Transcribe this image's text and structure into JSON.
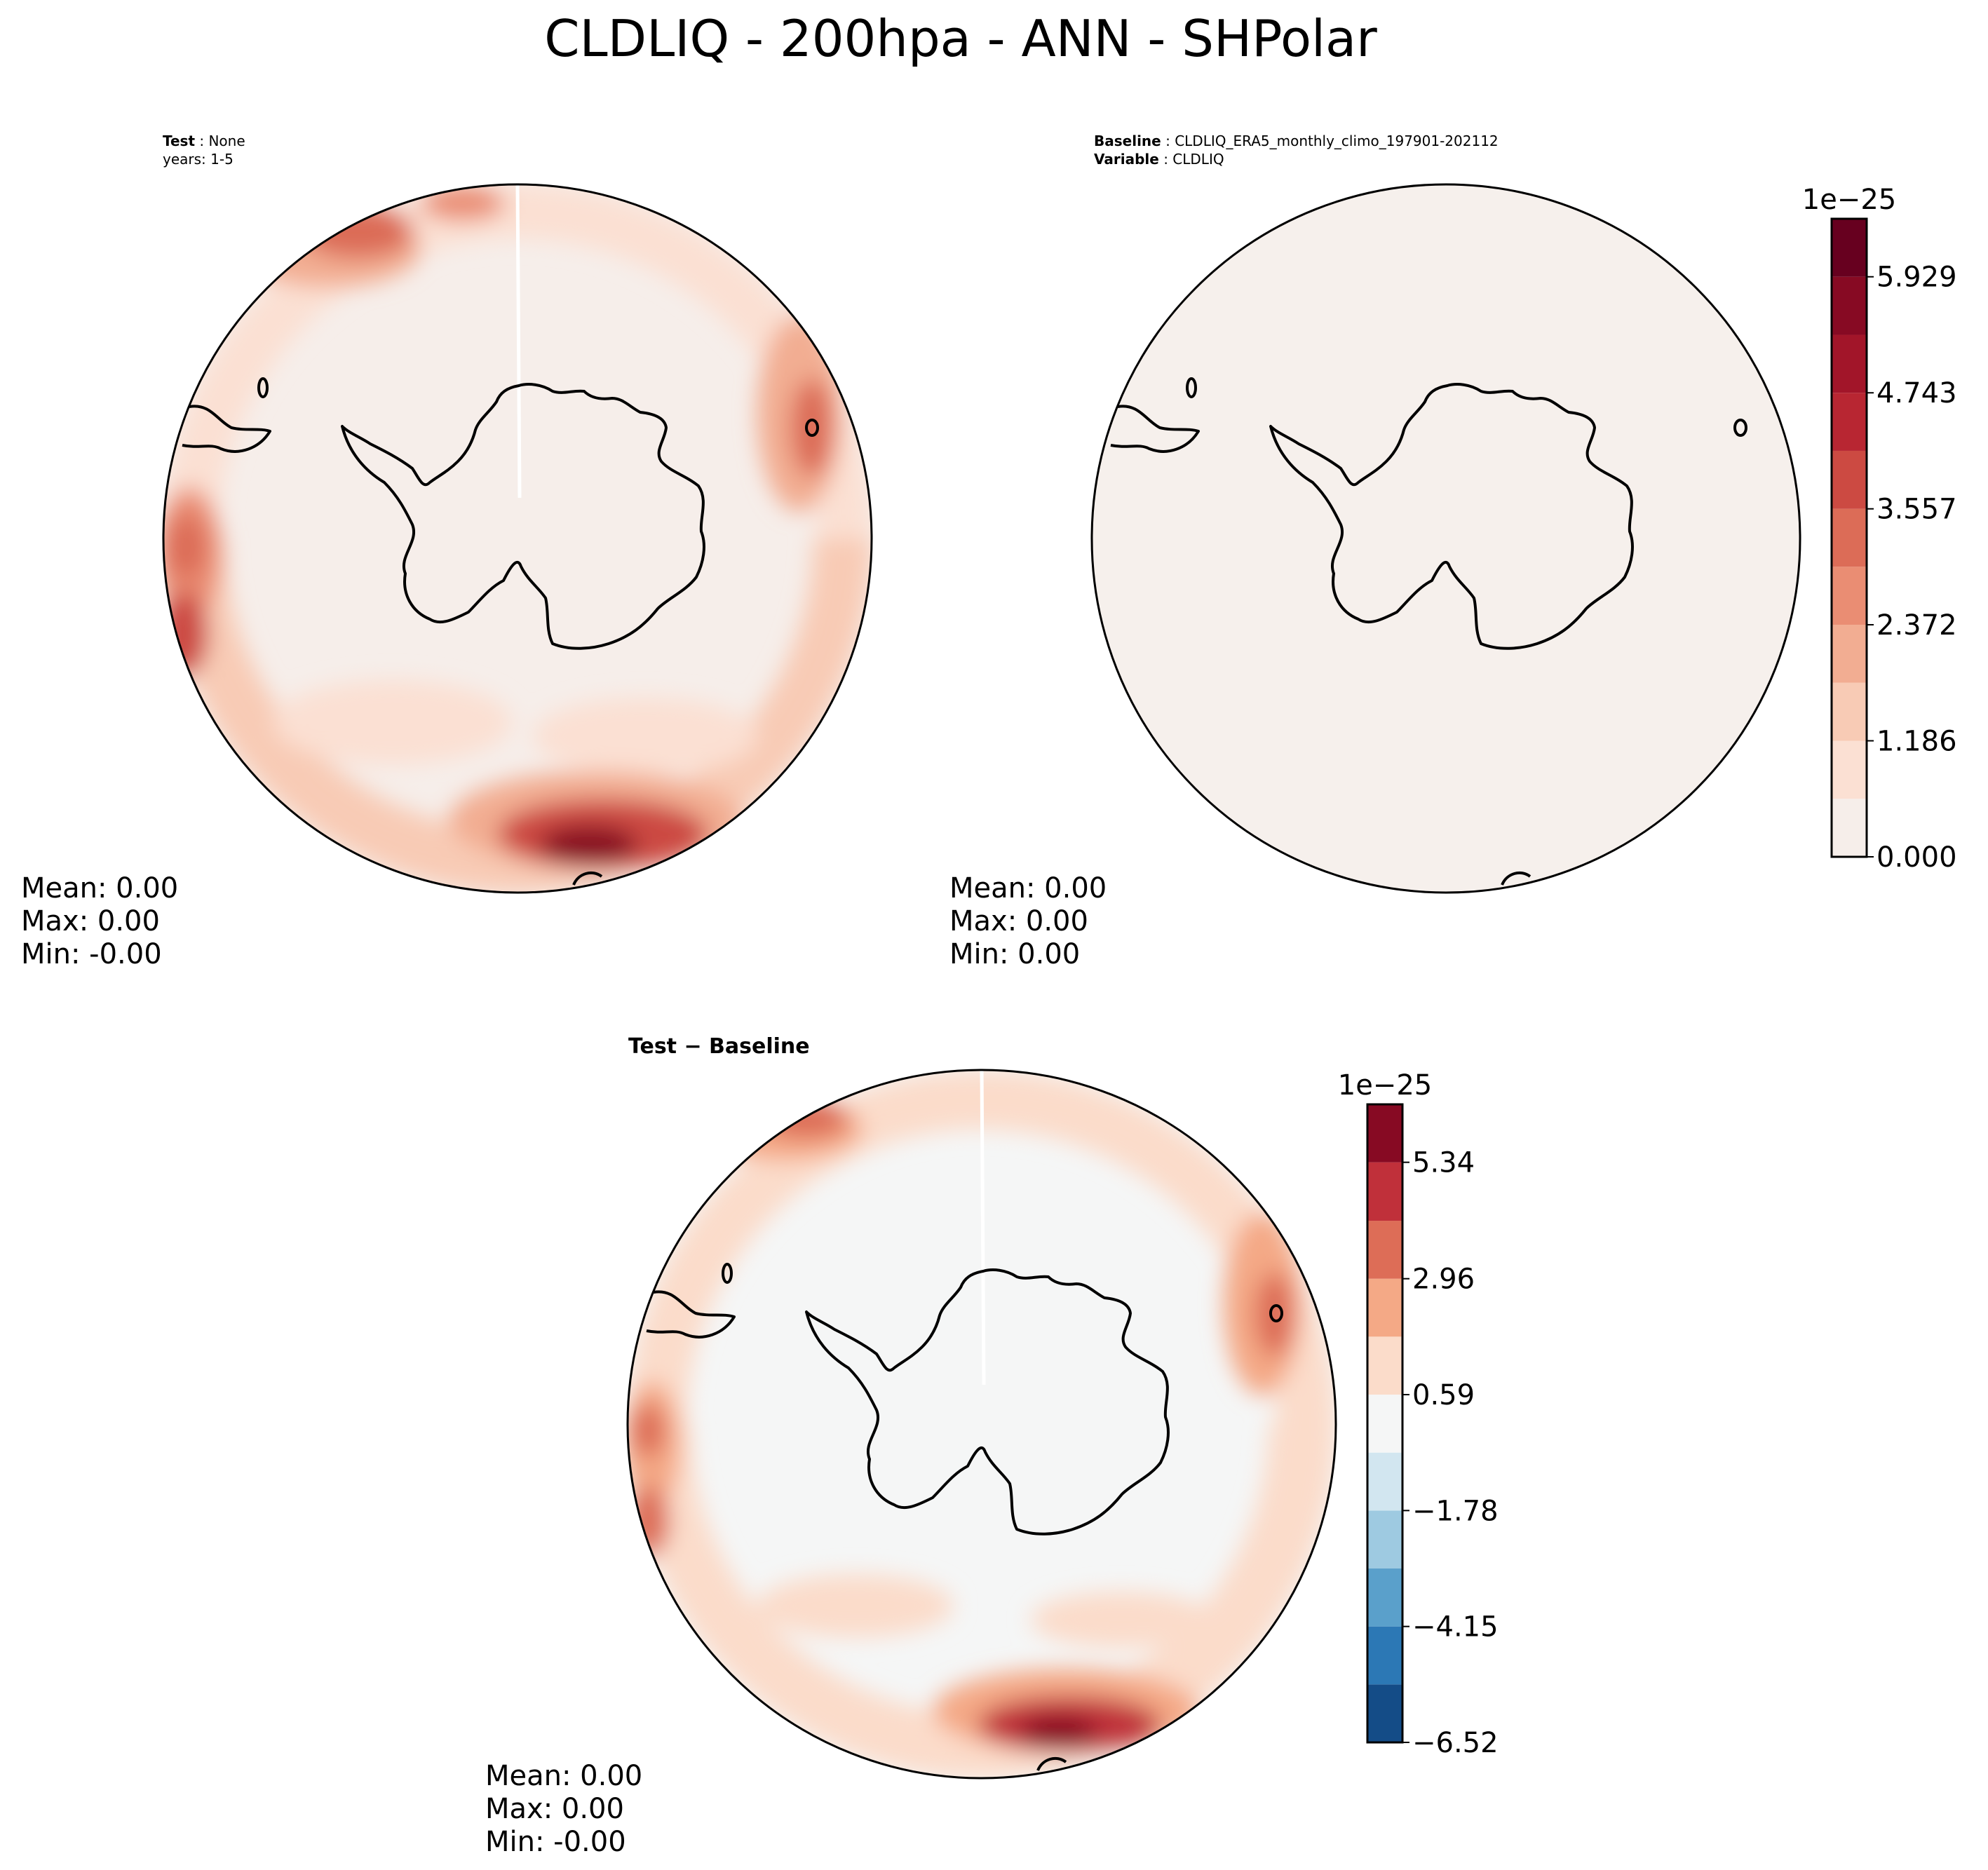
{
  "title": "CLDLIQ - 200hpa - ANN - SHPolar",
  "panels": {
    "test": {
      "label": "Test",
      "value": "None",
      "line2": "years: 1-5",
      "stats": {
        "mean": "Mean:  0.00",
        "max": "Max:  0.00",
        "min": "Min: -0.00"
      }
    },
    "baseline": {
      "label": "Baseline",
      "value": "CLDLIQ_ERA5_monthly_climo_197901-202112",
      "label2": "Variable",
      "value2": "CLDLIQ",
      "stats": {
        "mean": "Mean:  0.00",
        "max": "Max:  0.00",
        "min": "Min:  0.00"
      }
    },
    "diff": {
      "title": "Test − Baseline",
      "stats": {
        "mean": "Mean:  0.00",
        "max": "Max:  0.00",
        "min": "Min: -0.00"
      }
    }
  },
  "chart_data": [
    {
      "type": "heatmap",
      "projection": "south-polar-stereographic",
      "panel": "test",
      "field": "CLDLIQ",
      "level": "200hpa",
      "season": "ANN",
      "colormap": "Reds",
      "units_exponent": "1e−25",
      "colorbar_levels": [
        0.0,
        0.593,
        1.186,
        1.779,
        2.372,
        2.965,
        3.557,
        4.15,
        4.743,
        5.336,
        5.929,
        6.522
      ],
      "colors": [
        "#f6eeea",
        "#fbe0d3",
        "#f8cbb5",
        "#f2ad92",
        "#ea8d73",
        "#dc6c57",
        "#cc4a42",
        "#b82632",
        "#a21529",
        "#870a23",
        "#67001f"
      ],
      "features": [
        "near-zero over Antarctica",
        "enhanced values in mid-latitude ring",
        "maximum south of New Zealand / Southern Ocean"
      ],
      "stats": {
        "mean": 0.0,
        "max": 0.0,
        "min": -0.0
      }
    },
    {
      "type": "heatmap",
      "projection": "south-polar-stereographic",
      "panel": "baseline",
      "field": "CLDLIQ",
      "colormap": "Reds",
      "units_exponent": "1e−25",
      "colorbar_levels": [
        0.0,
        0.593,
        1.186,
        1.779,
        2.372,
        2.965,
        3.557,
        4.15,
        4.743,
        5.336,
        5.929,
        6.522
      ],
      "colorbar_tick_labels": [
        "0.000",
        "1.186",
        "2.372",
        "3.557",
        "4.743",
        "5.929"
      ],
      "features": [
        "uniform value 0 everywhere"
      ],
      "stats": {
        "mean": 0.0,
        "max": 0.0,
        "min": 0.0
      }
    },
    {
      "type": "heatmap",
      "projection": "south-polar-stereographic",
      "panel": "diff",
      "field": "CLDLIQ (Test - Baseline)",
      "colormap": "RdBu_r",
      "units_exponent": "1e−25",
      "colorbar_levels": [
        -6.52,
        -5.335,
        -4.15,
        -2.965,
        -1.78,
        -0.595,
        0.59,
        1.775,
        2.96,
        4.145,
        5.34,
        6.525
      ],
      "colorbar_tick_labels": [
        "−6.52",
        "−4.15",
        "−1.78",
        "0.59",
        "2.96",
        "5.34"
      ],
      "colors": [
        "#144c87",
        "#2c78b5",
        "#5aa0cb",
        "#9ecae1",
        "#d2e6f0",
        "#f5f6f6",
        "#fbdcca",
        "#f4a986",
        "#dd6d57",
        "#c0303a",
        "#870a23"
      ],
      "stats": {
        "mean": 0.0,
        "max": 0.0,
        "min": -0.0
      }
    }
  ]
}
